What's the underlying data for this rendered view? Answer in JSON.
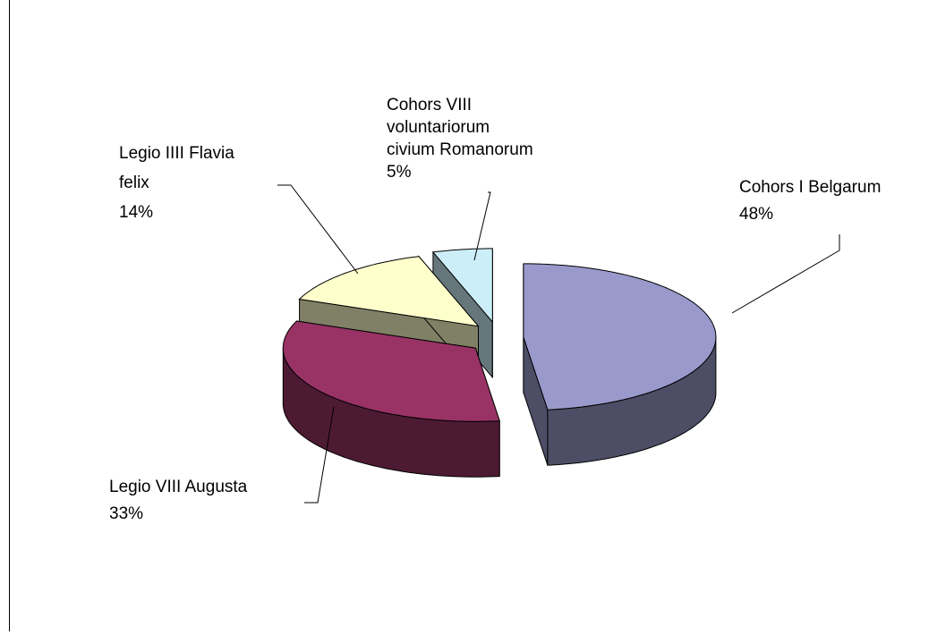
{
  "chart_data": {
    "type": "pie3d",
    "categories": [
      "Cohors I Belgarum",
      "Legio VIII Augusta",
      "Legio IIII Flavia felix",
      "Cohors VIII voluntariorum civium Romanorum"
    ],
    "values": [
      48,
      33,
      14,
      5
    ],
    "value_labels": [
      "48%",
      "33%",
      "14%",
      "5%"
    ],
    "colors": [
      "#9999cc",
      "#993366",
      "#ffffcc",
      "#cceef8"
    ],
    "exploded": true
  }
}
